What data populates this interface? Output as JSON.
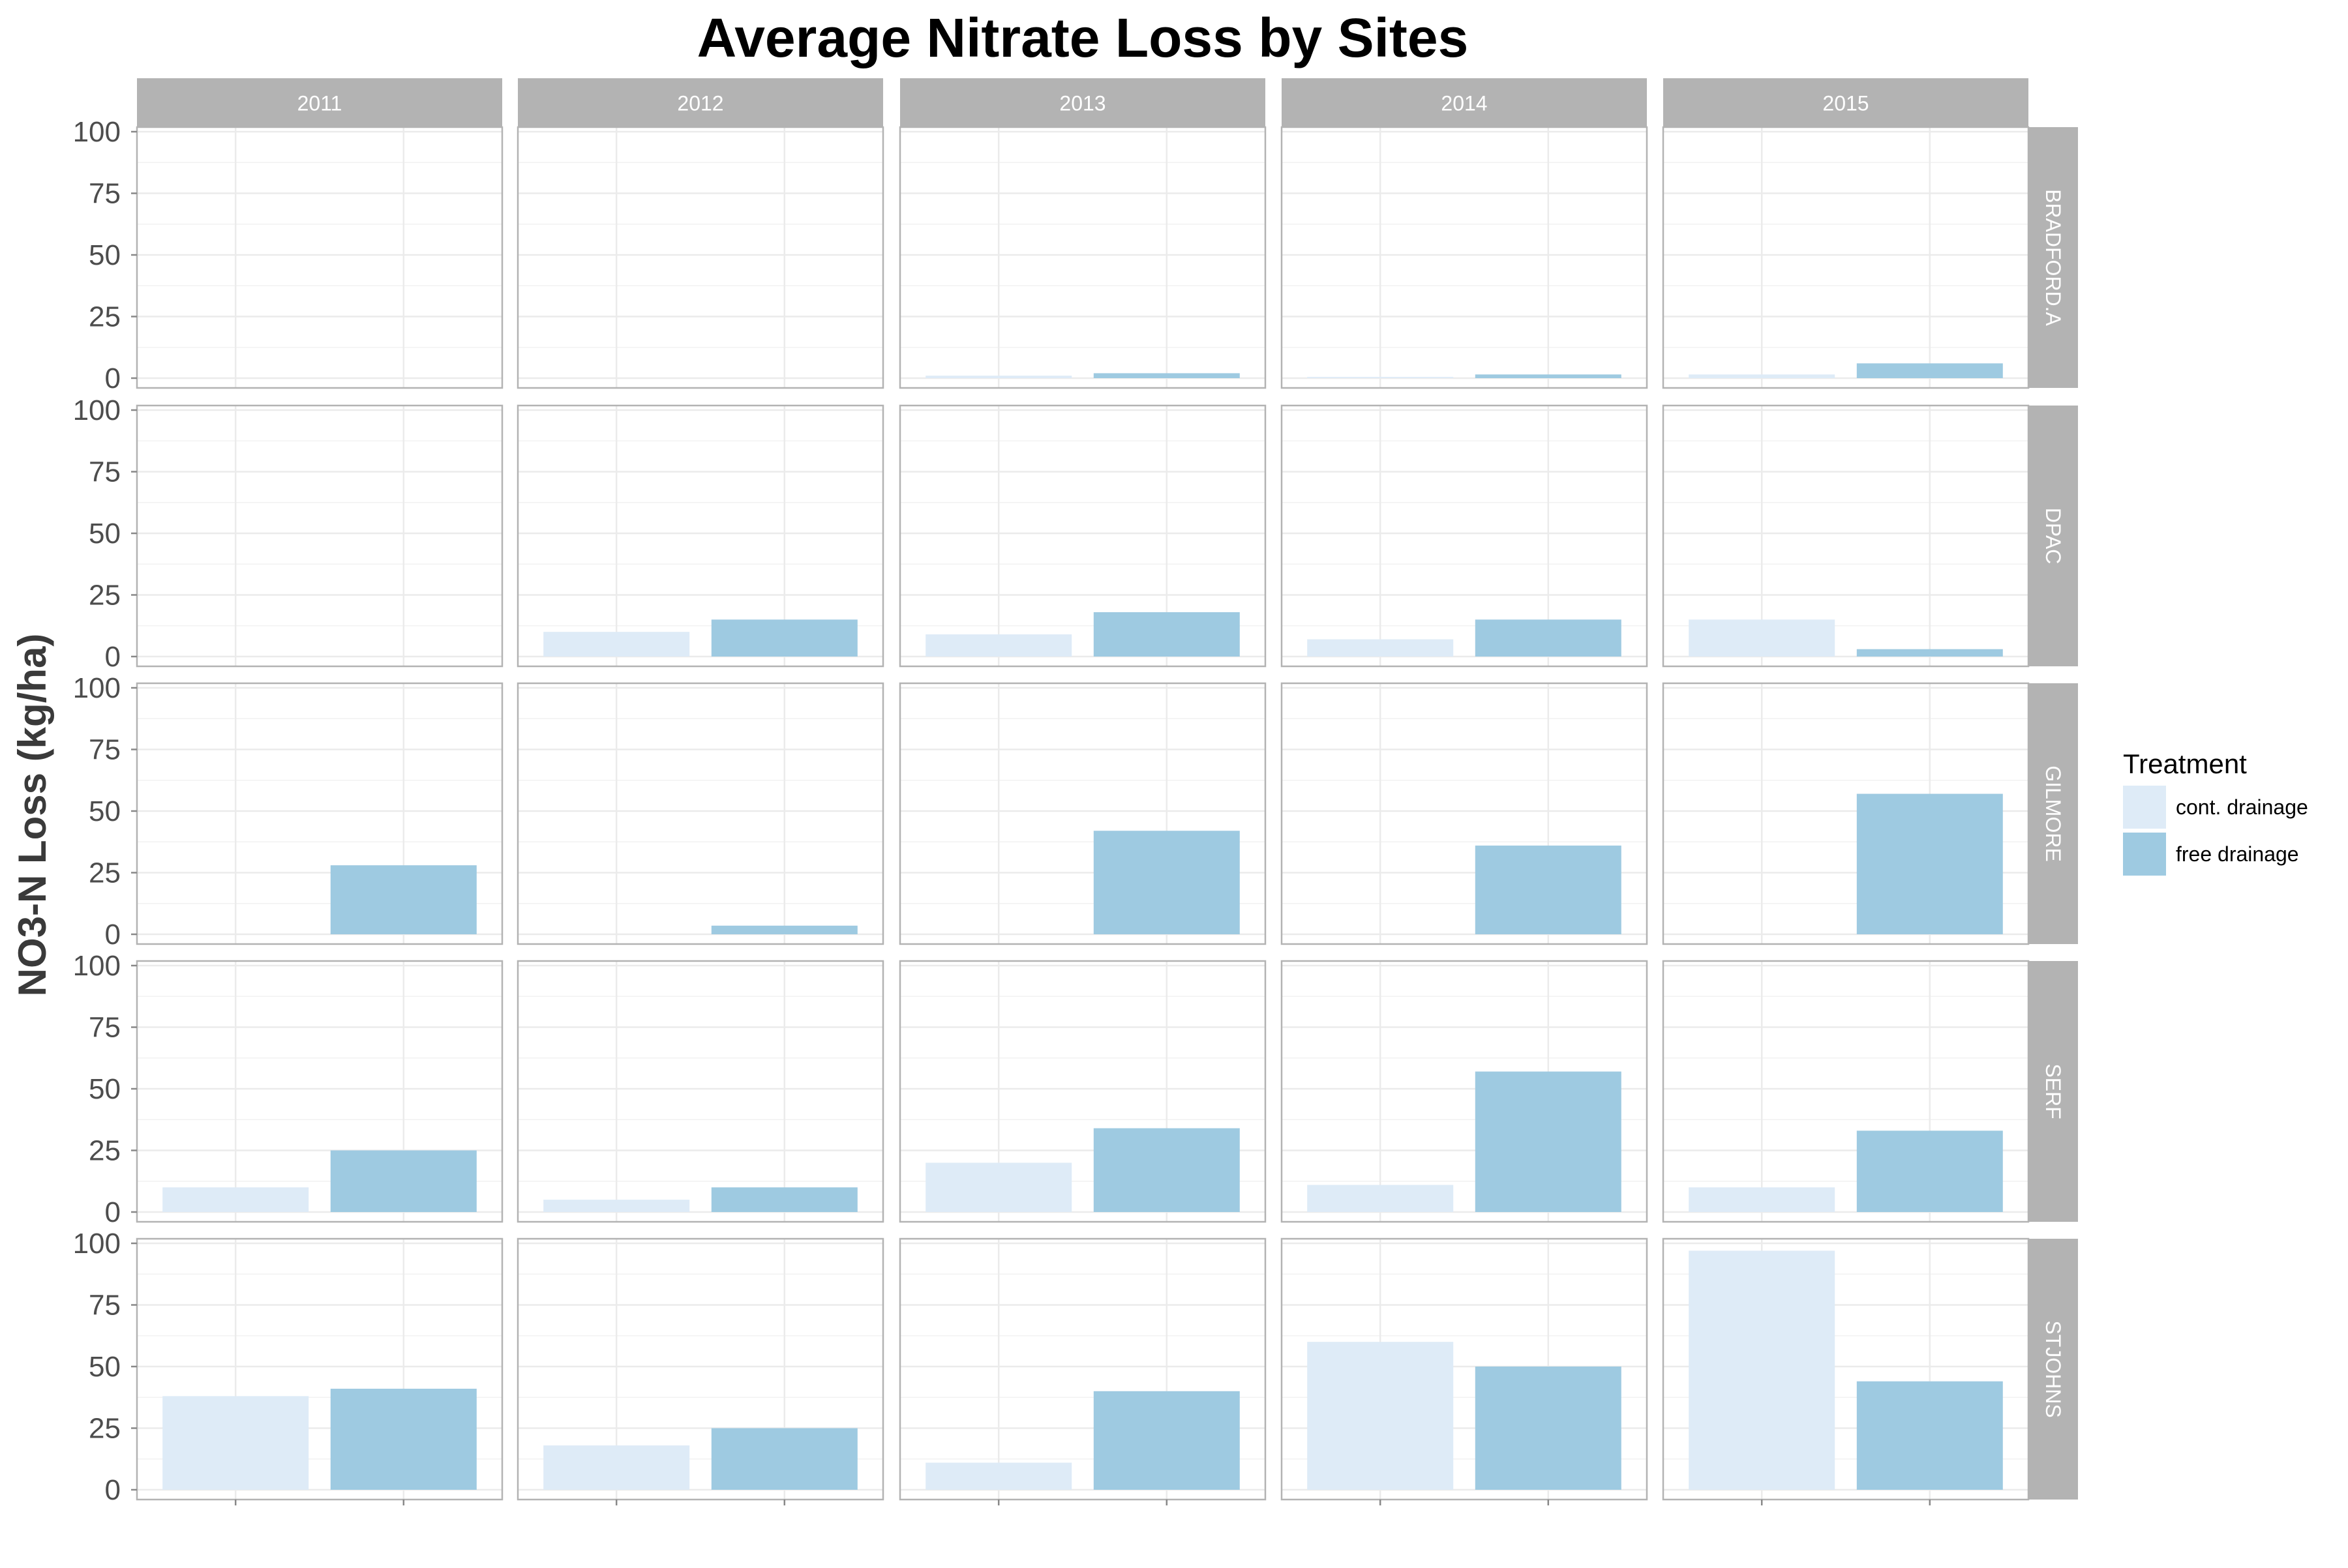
{
  "chart_data": {
    "type": "bar",
    "title": "Average Nitrate Loss by Sites",
    "ylabel": "NO3-N Loss (kg/ha)",
    "xlabel": "",
    "ylim": [
      0,
      100
    ],
    "yticks": [
      "0",
      "25",
      "50",
      "75",
      "100"
    ],
    "columns": [
      "2011",
      "2012",
      "2013",
      "2014",
      "2015"
    ],
    "rows": [
      "BRADFORD.A",
      "DPAC",
      "GILMORE",
      "SERF",
      "STJOHNS"
    ],
    "categories": [
      "cont. drainage",
      "free drainage"
    ],
    "colors": {
      "cont. drainage": "#deebf7",
      "free drainage": "#9ecae1",
      "strip": "#b3b3b3",
      "grid": "#ebebeb",
      "panel_border": "#b3b3b3"
    },
    "legend": {
      "title": "Treatment",
      "position": "right",
      "entries": [
        "cont. drainage",
        "free drainage"
      ]
    },
    "grid": true,
    "panels": [
      {
        "row": "BRADFORD.A",
        "col": "2011",
        "values": [
          null,
          null
        ]
      },
      {
        "row": "BRADFORD.A",
        "col": "2012",
        "values": [
          null,
          null
        ]
      },
      {
        "row": "BRADFORD.A",
        "col": "2013",
        "values": [
          1,
          2
        ]
      },
      {
        "row": "BRADFORD.A",
        "col": "2014",
        "values": [
          0.5,
          1.5
        ]
      },
      {
        "row": "BRADFORD.A",
        "col": "2015",
        "values": [
          1.5,
          6
        ]
      },
      {
        "row": "DPAC",
        "col": "2011",
        "values": [
          null,
          null
        ]
      },
      {
        "row": "DPAC",
        "col": "2012",
        "values": [
          10,
          15
        ]
      },
      {
        "row": "DPAC",
        "col": "2013",
        "values": [
          9,
          18
        ]
      },
      {
        "row": "DPAC",
        "col": "2014",
        "values": [
          7,
          15
        ]
      },
      {
        "row": "DPAC",
        "col": "2015",
        "values": [
          15,
          3
        ]
      },
      {
        "row": "GILMORE",
        "col": "2011",
        "values": [
          null,
          28
        ]
      },
      {
        "row": "GILMORE",
        "col": "2012",
        "values": [
          null,
          3.5
        ]
      },
      {
        "row": "GILMORE",
        "col": "2013",
        "values": [
          null,
          42
        ]
      },
      {
        "row": "GILMORE",
        "col": "2014",
        "values": [
          null,
          36
        ]
      },
      {
        "row": "GILMORE",
        "col": "2015",
        "values": [
          null,
          57
        ]
      },
      {
        "row": "SERF",
        "col": "2011",
        "values": [
          10,
          25
        ]
      },
      {
        "row": "SERF",
        "col": "2012",
        "values": [
          5,
          10
        ]
      },
      {
        "row": "SERF",
        "col": "2013",
        "values": [
          20,
          34
        ]
      },
      {
        "row": "SERF",
        "col": "2014",
        "values": [
          11,
          57
        ]
      },
      {
        "row": "SERF",
        "col": "2015",
        "values": [
          10,
          33
        ]
      },
      {
        "row": "STJOHNS",
        "col": "2011",
        "values": [
          38,
          41
        ]
      },
      {
        "row": "STJOHNS",
        "col": "2012",
        "values": [
          18,
          25
        ]
      },
      {
        "row": "STJOHNS",
        "col": "2013",
        "values": [
          11,
          40
        ]
      },
      {
        "row": "STJOHNS",
        "col": "2014",
        "values": [
          60,
          50
        ]
      },
      {
        "row": "STJOHNS",
        "col": "2015",
        "values": [
          97,
          44
        ]
      }
    ]
  }
}
